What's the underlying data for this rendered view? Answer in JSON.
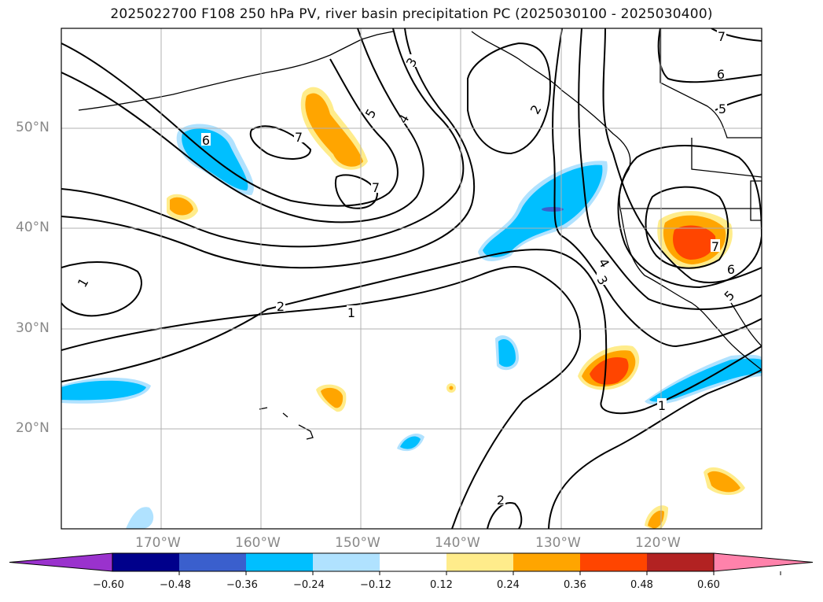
{
  "title": "2025022700 F108 250 hPa PV, river basin precipitation PC (2025030100 - 2025030400)",
  "map": {
    "lat_labels": [
      "50°N",
      "40°N",
      "30°N",
      "20°N"
    ],
    "lon_labels": [
      "170°W",
      "160°W",
      "150°W",
      "140°W",
      "130°W",
      "120°W"
    ],
    "pv_contour_labels": [
      {
        "text": "6"
      },
      {
        "text": "7"
      },
      {
        "text": "7"
      },
      {
        "text": "5"
      },
      {
        "text": "4"
      },
      {
        "text": "3"
      },
      {
        "text": "2"
      },
      {
        "text": "1"
      },
      {
        "text": "2"
      },
      {
        "text": "1"
      },
      {
        "text": "4"
      },
      {
        "text": "3"
      },
      {
        "text": "6"
      },
      {
        "text": "5"
      },
      {
        "text": "7"
      },
      {
        "text": "6"
      },
      {
        "text": "5"
      },
      {
        "text": "7"
      },
      {
        "text": "1"
      },
      {
        "text": "2"
      }
    ]
  },
  "colorbar": {
    "ticks": [
      "−0.60",
      "−0.48",
      "−0.36",
      "−0.24",
      "−0.12",
      "0.12",
      "0.24",
      "0.36",
      "0.48",
      "0.60"
    ],
    "colors": [
      "#9a32cd",
      "#00008b",
      "#3a5fcd",
      "#00bfff",
      "#b0e2ff",
      "#ffffff",
      "#ffec8b",
      "#ffa500",
      "#ff4500",
      "#b22222",
      "#ff82ab"
    ]
  }
}
